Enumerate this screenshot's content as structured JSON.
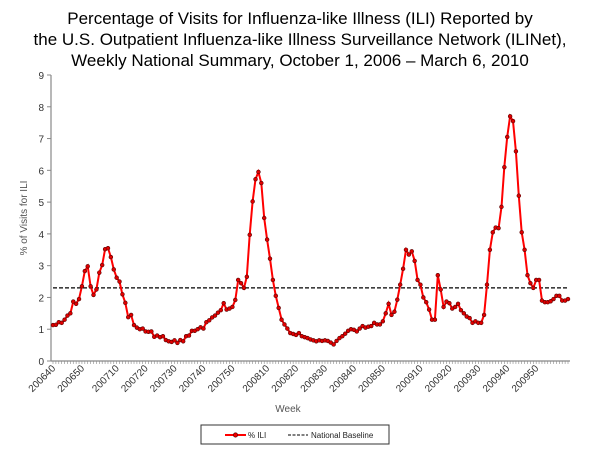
{
  "chart_data": {
    "type": "line",
    "title": [
      "Percentage of Visits for Influenza-like Illness (ILI) Reported by",
      "the U.S. Outpatient Influenza-like Illness Surveillance Network (ILINet),",
      "Weekly National Summary, October 1, 2006 – March 6, 2010"
    ],
    "xlabel": "Week",
    "ylabel": "% of Visits for ILI",
    "ylim": [
      0,
      9
    ],
    "yticks": [
      "0",
      "1",
      "2",
      "3",
      "4",
      "5",
      "6",
      "7",
      "8",
      "9"
    ],
    "xtick_labels": [
      "200640",
      "200650",
      "200710",
      "200720",
      "200730",
      "200740",
      "200750",
      "200810",
      "200820",
      "200830",
      "200840",
      "200850",
      "200910",
      "200920",
      "200930",
      "200940",
      "200950"
    ],
    "grid": false,
    "legend_position": "bottom",
    "weeks": [
      "200640",
      "200641",
      "200642",
      "200643",
      "200644",
      "200645",
      "200646",
      "200647",
      "200648",
      "200649",
      "200650",
      "200651",
      "200652",
      "200701",
      "200702",
      "200703",
      "200704",
      "200705",
      "200706",
      "200707",
      "200708",
      "200709",
      "200710",
      "200711",
      "200712",
      "200713",
      "200714",
      "200715",
      "200716",
      "200717",
      "200718",
      "200719",
      "200720",
      "200721",
      "200722",
      "200723",
      "200724",
      "200725",
      "200726",
      "200727",
      "200728",
      "200729",
      "200730",
      "200731",
      "200732",
      "200733",
      "200734",
      "200735",
      "200736",
      "200737",
      "200738",
      "200739",
      "200740",
      "200741",
      "200742",
      "200743",
      "200744",
      "200745",
      "200746",
      "200747",
      "200748",
      "200749",
      "200750",
      "200751",
      "200752",
      "200801",
      "200802",
      "200803",
      "200804",
      "200805",
      "200806",
      "200807",
      "200808",
      "200809",
      "200810",
      "200811",
      "200812",
      "200813",
      "200814",
      "200815",
      "200816",
      "200817",
      "200818",
      "200819",
      "200820",
      "200821",
      "200822",
      "200823",
      "200824",
      "200825",
      "200826",
      "200827",
      "200828",
      "200829",
      "200830",
      "200831",
      "200832",
      "200833",
      "200834",
      "200835",
      "200836",
      "200837",
      "200838",
      "200839",
      "200840",
      "200841",
      "200842",
      "200843",
      "200844",
      "200845",
      "200846",
      "200847",
      "200848",
      "200849",
      "200850",
      "200851",
      "200852",
      "200853",
      "200901",
      "200902",
      "200903",
      "200904",
      "200905",
      "200906",
      "200907",
      "200908",
      "200909",
      "200910",
      "200911",
      "200912",
      "200913",
      "200914",
      "200915",
      "200916",
      "200917",
      "200918",
      "200919",
      "200920",
      "200921",
      "200922",
      "200923",
      "200924",
      "200925",
      "200926",
      "200927",
      "200928",
      "200929",
      "200930",
      "200931",
      "200932",
      "200933",
      "200934",
      "200935",
      "200936",
      "200937",
      "200938",
      "200939",
      "200940",
      "200941",
      "200942",
      "200943",
      "200944",
      "200945",
      "200946",
      "200947",
      "200948",
      "200949",
      "200950",
      "200951",
      "200952",
      "201001",
      "201002",
      "201003",
      "201004",
      "201005",
      "201006",
      "201007",
      "201008",
      "201009"
    ],
    "series": [
      {
        "name": "% ILI",
        "color": "#ff0000",
        "marker": "circle",
        "values": [
          1.13,
          1.14,
          1.22,
          1.2,
          1.3,
          1.43,
          1.5,
          1.87,
          1.8,
          1.95,
          2.35,
          2.83,
          2.98,
          2.35,
          2.08,
          2.25,
          2.78,
          3.02,
          3.52,
          3.55,
          3.27,
          2.88,
          2.62,
          2.5,
          2.1,
          1.83,
          1.38,
          1.45,
          1.13,
          1.05,
          1.0,
          1.02,
          0.93,
          0.92,
          0.93,
          0.76,
          0.8,
          0.75,
          0.78,
          0.66,
          0.62,
          0.6,
          0.65,
          0.57,
          0.66,
          0.62,
          0.78,
          0.8,
          0.95,
          0.95,
          1.0,
          1.06,
          1.02,
          1.22,
          1.28,
          1.37,
          1.43,
          1.52,
          1.6,
          1.82,
          1.62,
          1.65,
          1.7,
          1.92,
          2.55,
          2.45,
          2.3,
          2.65,
          3.97,
          5.02,
          5.72,
          5.95,
          5.6,
          4.5,
          3.82,
          3.22,
          2.55,
          2.05,
          1.67,
          1.3,
          1.15,
          1.02,
          0.88,
          0.85,
          0.82,
          0.88,
          0.78,
          0.75,
          0.72,
          0.68,
          0.65,
          0.62,
          0.65,
          0.63,
          0.65,
          0.63,
          0.58,
          0.52,
          0.63,
          0.72,
          0.78,
          0.86,
          0.95,
          1.0,
          0.98,
          0.93,
          1.02,
          1.1,
          1.05,
          1.08,
          1.1,
          1.2,
          1.15,
          1.15,
          1.25,
          1.5,
          1.8,
          1.45,
          1.55,
          1.93,
          2.4,
          2.9,
          3.5,
          3.35,
          3.45,
          3.15,
          2.55,
          2.4,
          2.0,
          1.85,
          1.62,
          1.3,
          1.3,
          2.7,
          2.25,
          1.7,
          1.87,
          1.82,
          1.65,
          1.7,
          1.8,
          1.6,
          1.5,
          1.4,
          1.35,
          1.2,
          1.25,
          1.2,
          1.2,
          1.45,
          2.4,
          3.5,
          4.05,
          4.2,
          4.18,
          4.85,
          6.1,
          7.05,
          7.7,
          7.55,
          6.6,
          5.2,
          4.05,
          3.5,
          2.7,
          2.45,
          2.3,
          2.55,
          2.55,
          1.9,
          1.85,
          1.85,
          1.88,
          1.95,
          2.05,
          2.05,
          1.9,
          1.9,
          1.95
        ]
      },
      {
        "name": "National Baseline",
        "color": "#000000",
        "style": "dashed",
        "constant": 2.3
      }
    ]
  }
}
